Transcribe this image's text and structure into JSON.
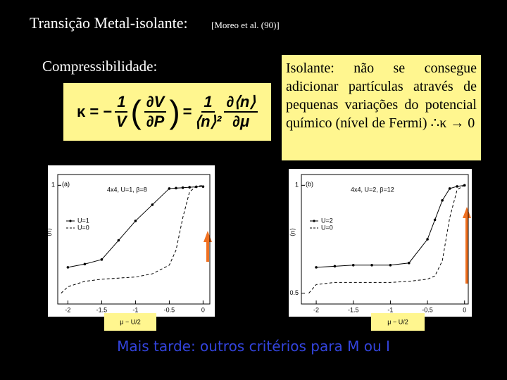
{
  "slide": {
    "title": "Transição Metal-isolante:",
    "reference": "[Moreo et al. (90)]",
    "subtitle": "Compressibilidade:",
    "formula": {
      "lhs": "κ = −",
      "f1": [
        "1",
        "V"
      ],
      "f2": [
        "∂V",
        "∂P"
      ],
      "eq": "=",
      "f3": [
        "1",
        "⟨n⟩²"
      ],
      "f4": [
        "∂⟨n⟩",
        "∂μ"
      ]
    },
    "note": "Isolante: não se consegue adicionar partículas através de pequenas variações do potencial químico (nível de Fermi) ∴κ → 0",
    "footer": "Mais tarde: outros critérios para M ou I"
  },
  "chart_data": [
    {
      "type": "line",
      "panel": "(a)",
      "annotation": "4x4, U=1, β=8",
      "xlabel": "μ − U/2",
      "ylabel": "⟨n⟩",
      "x": [
        -2.1,
        -2,
        -1.75,
        -1.5,
        -1.25,
        -1,
        -0.75,
        -0.5,
        -0.4,
        -0.3,
        -0.2,
        -0.1,
        0
      ],
      "xlim": [
        -2.15,
        0.1
      ],
      "xticks": [
        -2,
        -1.5,
        -1,
        -0.5,
        0
      ],
      "ylim": [
        0.45,
        1.05
      ],
      "yticks": [
        1
      ],
      "legend": "left",
      "series": [
        {
          "name": "U=1",
          "color": "#000000",
          "style": "solid",
          "marker": true,
          "values": [
            null,
            0.62,
            0.635,
            0.656,
            0.745,
            0.835,
            0.91,
            0.985,
            0.987,
            0.989,
            0.991,
            0.993,
            0.994
          ]
        },
        {
          "name": "U=0",
          "color": "#000000",
          "style": "dashed",
          "marker": false,
          "values": [
            0.5,
            0.53,
            0.555,
            0.565,
            0.57,
            0.575,
            0.59,
            0.63,
            0.7,
            0.85,
            0.97,
            0.995,
            1.0
          ]
        }
      ]
    },
    {
      "type": "line",
      "panel": "(b)",
      "annotation": "4x4, U=2, β=12",
      "xlabel": "μ − U/2",
      "ylabel": "⟨n⟩",
      "x": [
        -2.1,
        -2,
        -1.75,
        -1.5,
        -1.25,
        -1,
        -0.75,
        -0.5,
        -0.4,
        -0.3,
        -0.2,
        -0.1,
        0
      ],
      "xlim": [
        -2.2,
        0.05
      ],
      "xticks": [
        -2,
        -1.5,
        -1,
        -0.5,
        0
      ],
      "ylim": [
        0.45,
        1.05
      ],
      "yticks": [
        0.5,
        1
      ],
      "legend": "left",
      "series": [
        {
          "name": "U=2",
          "color": "#000000",
          "style": "solid",
          "marker": true,
          "values": [
            null,
            0.62,
            0.625,
            0.63,
            0.63,
            0.63,
            0.64,
            0.75,
            0.84,
            0.93,
            0.985,
            0.995,
            1.0
          ]
        },
        {
          "name": "U=0",
          "color": "#000000",
          "style": "dashed",
          "marker": false,
          "values": [
            0.5,
            0.54,
            0.55,
            0.55,
            0.55,
            0.55,
            0.555,
            0.565,
            0.58,
            0.65,
            0.85,
            0.98,
            1.0
          ]
        }
      ]
    }
  ]
}
